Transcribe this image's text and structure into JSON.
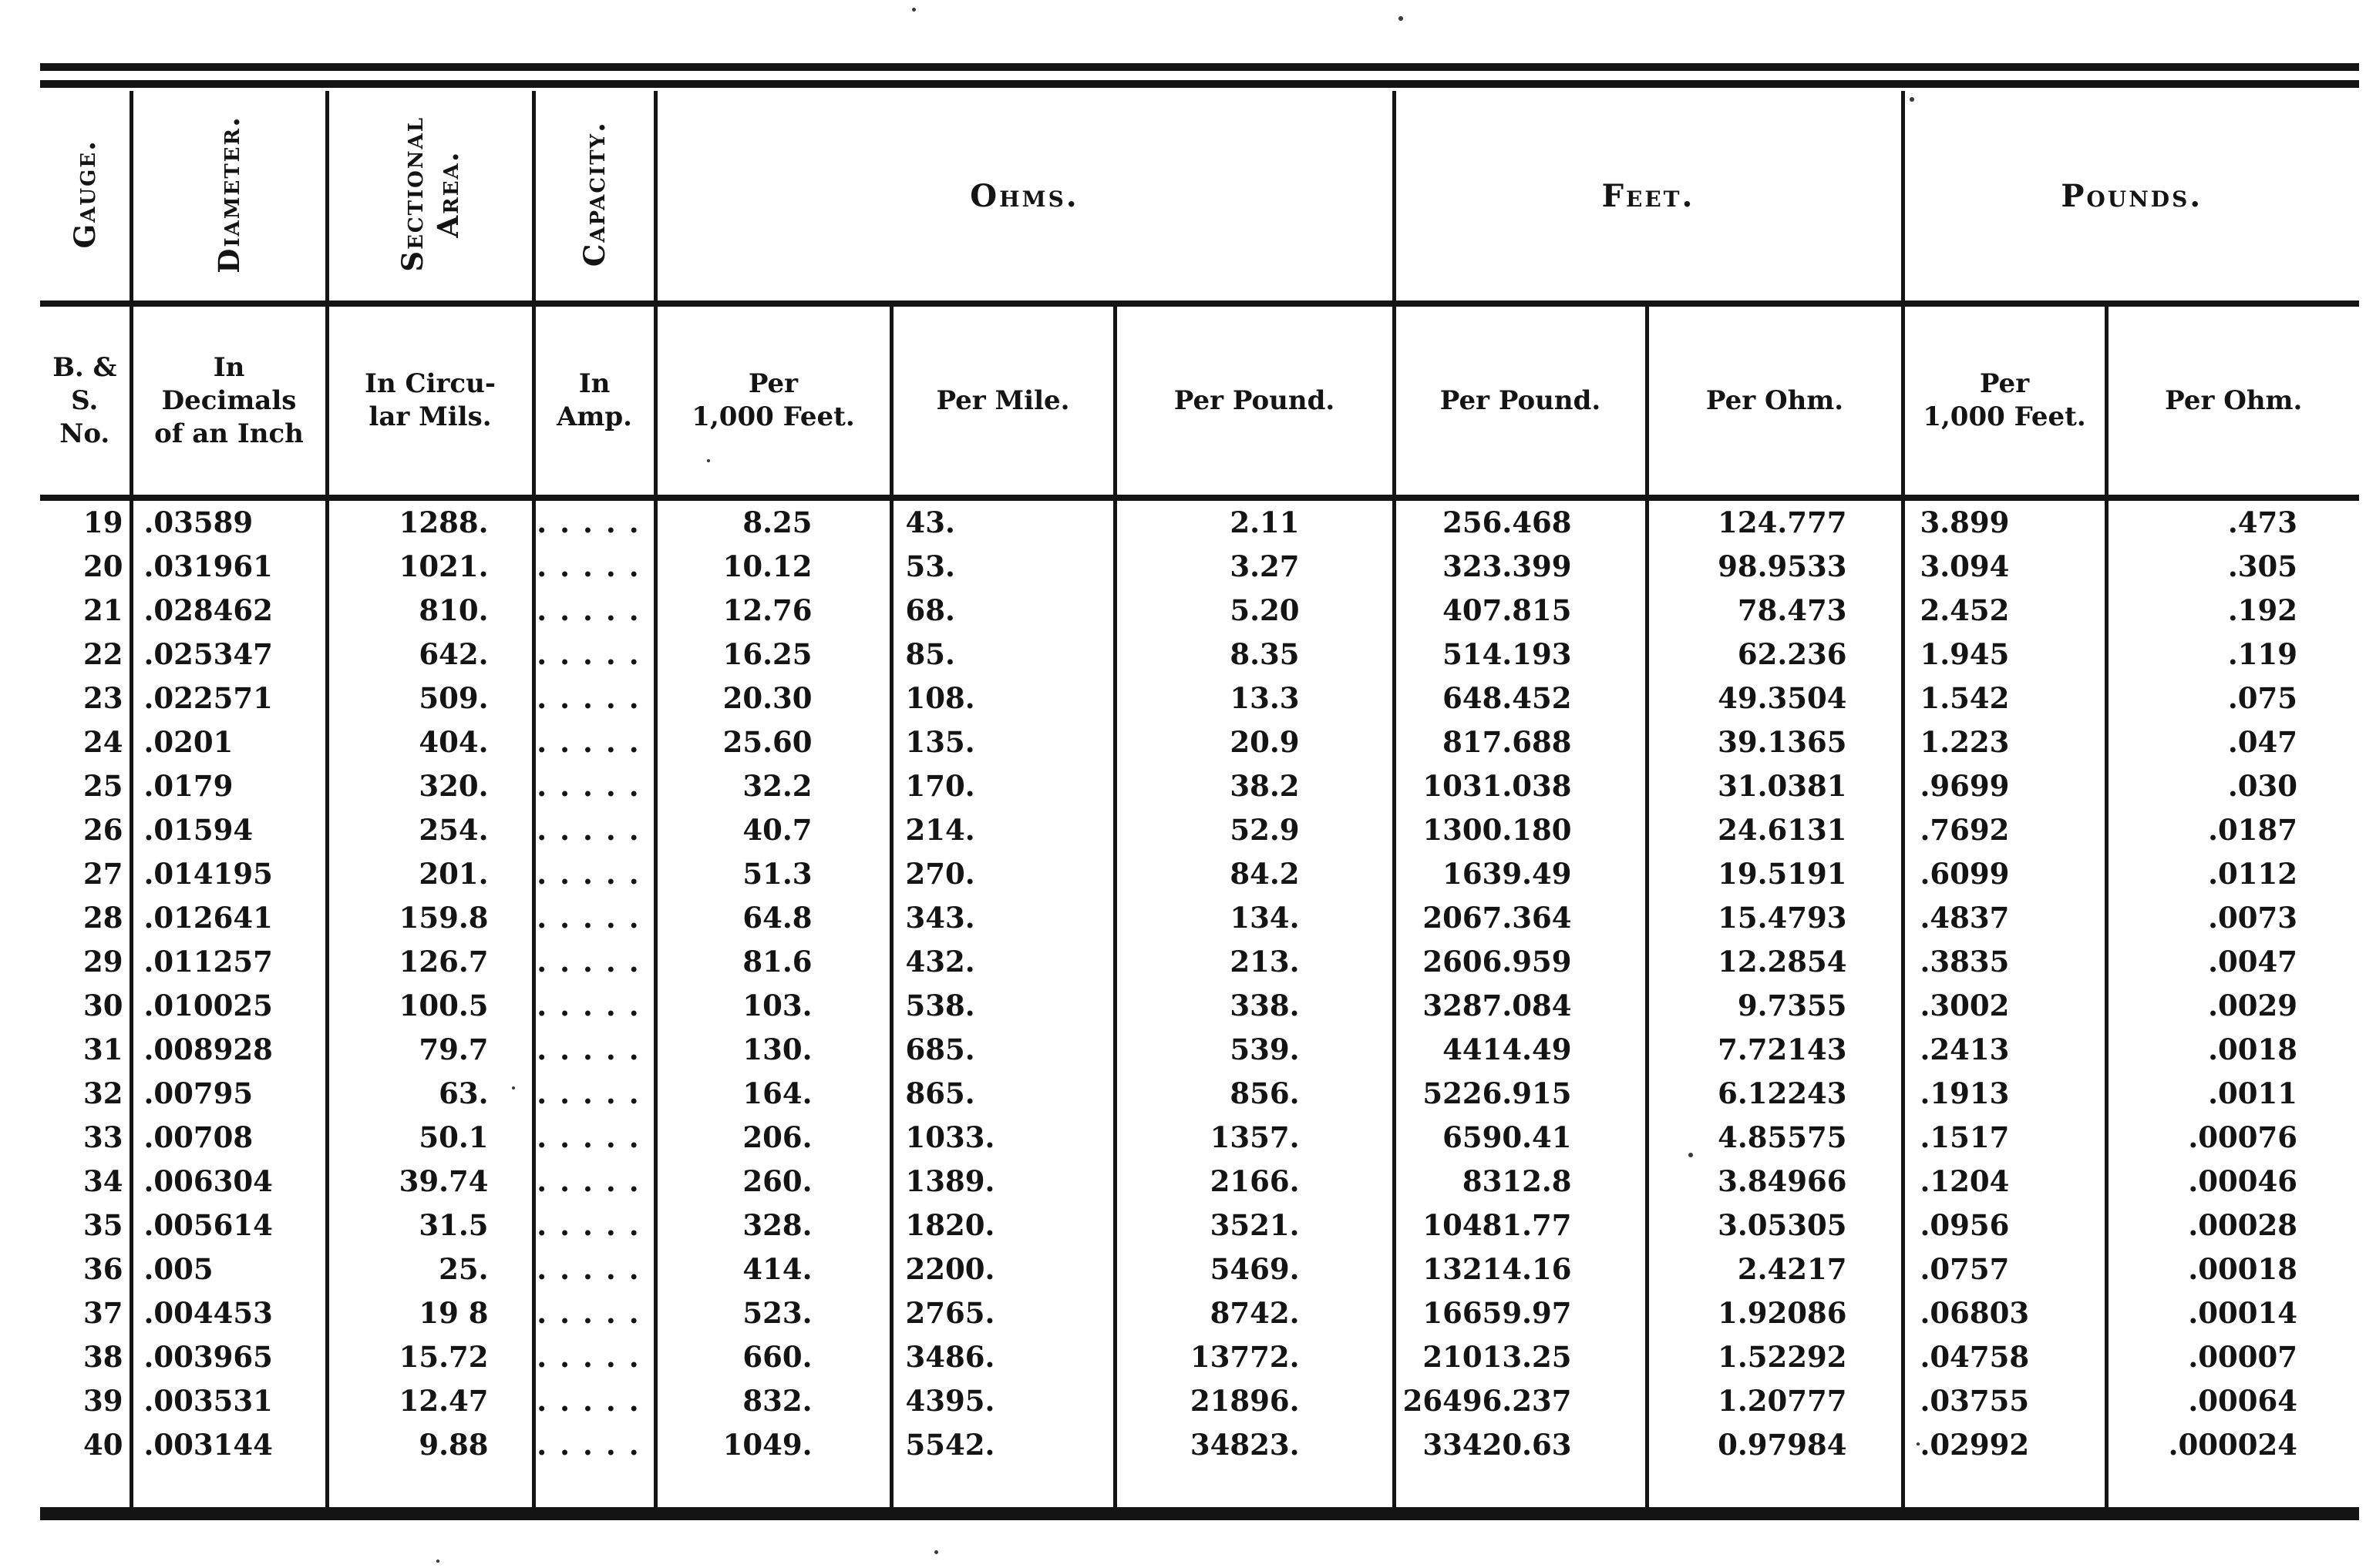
{
  "colors": {
    "ink": "#141414",
    "paper": "#ffffff"
  },
  "table": {
    "rotated_headers": [
      "Gauge.",
      "Diameter.",
      "Sectional\nArea.",
      "Capacity."
    ],
    "group_headers": [
      "Ohms.",
      "Feet.",
      "Pounds."
    ],
    "sub_headers": [
      "B. &\nS.\nNo.",
      "In\nDecimals\nof an Inch",
      "In Circu-\nlar Mils.",
      "In\nAmp.",
      "Per\n1,000 Feet.",
      "Per Mile.",
      "Per Pound.",
      "Per Pound.",
      "Per Ohm.",
      "Per\n1,000 Feet.",
      "Per Ohm."
    ],
    "rows": [
      [
        "19",
        ".03589",
        "1288.",
        ".....",
        "8.25",
        "43.",
        "2.11",
        "256.468",
        "124.777",
        "3.899",
        ".473"
      ],
      [
        "20",
        ".031961",
        "1021.",
        ".....",
        "10.12",
        "53.",
        "3.27",
        "323.399",
        "98.9533",
        "3.094",
        ".305"
      ],
      [
        "21",
        ".028462",
        "810.",
        ".....",
        "12.76",
        "68.",
        "5.20",
        "407.815",
        "78.473",
        "2.452",
        ".192"
      ],
      [
        "22",
        ".025347",
        "642.",
        ".....",
        "16.25",
        "85.",
        "8.35",
        "514.193",
        "62.236",
        "1.945",
        ".119"
      ],
      [
        "23",
        ".022571",
        "509.",
        ".....",
        "20.30",
        "108.",
        "13.3",
        "648.452",
        "49.3504",
        "1.542",
        ".075"
      ],
      [
        "24",
        ".0201",
        "404.",
        ".....",
        "25.60",
        "135.",
        "20.9",
        "817.688",
        "39.1365",
        "1.223",
        ".047"
      ],
      [
        "25",
        ".0179",
        "320.",
        ".....",
        "32.2",
        "170.",
        "38.2",
        "1031.038",
        "31.0381",
        ".9699",
        ".030"
      ],
      [
        "26",
        ".01594",
        "254.",
        ".....",
        "40.7",
        "214.",
        "52.9",
        "1300.180",
        "24.6131",
        ".7692",
        ".0187"
      ],
      [
        "27",
        ".014195",
        "201.",
        ".....",
        "51.3",
        "270.",
        "84.2",
        "1639.49",
        "19.5191",
        ".6099",
        ".0112"
      ],
      [
        "28",
        ".012641",
        "159.8",
        ".....",
        "64.8",
        "343.",
        "134.",
        "2067.364",
        "15.4793",
        ".4837",
        ".0073"
      ],
      [
        "29",
        ".011257",
        "126.7",
        ".....",
        "81.6",
        "432.",
        "213.",
        "2606.959",
        "12.2854",
        ".3835",
        ".0047"
      ],
      [
        "30",
        ".010025",
        "100.5",
        ".....",
        "103.",
        "538.",
        "338.",
        "3287.084",
        "9.7355",
        ".3002",
        ".0029"
      ],
      [
        "31",
        ".008928",
        "79.7",
        ".....",
        "130.",
        "685.",
        "539.",
        "4414.49",
        "7.72143",
        ".2413",
        ".0018"
      ],
      [
        "32",
        ".00795",
        "63.",
        ".....",
        "164.",
        "865.",
        "856.",
        "5226.915",
        "6.12243",
        ".1913",
        ".0011"
      ],
      [
        "33",
        ".00708",
        "50.1",
        ".....",
        "206.",
        "1033.",
        "1357.",
        "6590.41",
        "4.85575",
        ".1517",
        ".00076"
      ],
      [
        "34",
        ".006304",
        "39.74",
        ".....",
        "260.",
        "1389.",
        "2166.",
        "8312.8",
        "3.84966",
        ".1204",
        ".00046"
      ],
      [
        "35",
        ".005614",
        "31.5",
        ".....",
        "328.",
        "1820.",
        "3521.",
        "10481.77",
        "3.05305",
        ".0956",
        ".00028"
      ],
      [
        "36",
        ".005",
        "25.",
        ".....",
        "414.",
        "2200.",
        "5469.",
        "13214.16",
        "2.4217",
        ".0757",
        ".00018"
      ],
      [
        "37",
        ".004453",
        "19 8",
        ".....",
        "523.",
        "2765.",
        "8742.",
        "16659.97",
        "1.92086",
        ".06803",
        ".00014"
      ],
      [
        "38",
        ".003965",
        "15.72",
        ".....",
        "660.",
        "3486.",
        "13772.",
        "21013.25",
        "1.52292",
        ".04758",
        ".00007"
      ],
      [
        "39",
        ".003531",
        "12.47",
        ".....",
        "832.",
        "4395.",
        "21896.",
        "26496.237",
        "1.20777",
        ".03755",
        ".00064"
      ],
      [
        "40",
        ".003144",
        "9.88",
        ".....",
        "1049.",
        "5542.",
        "34823.",
        "33420.63",
        "0.97984",
        ".02992",
        ".000024"
      ]
    ]
  }
}
